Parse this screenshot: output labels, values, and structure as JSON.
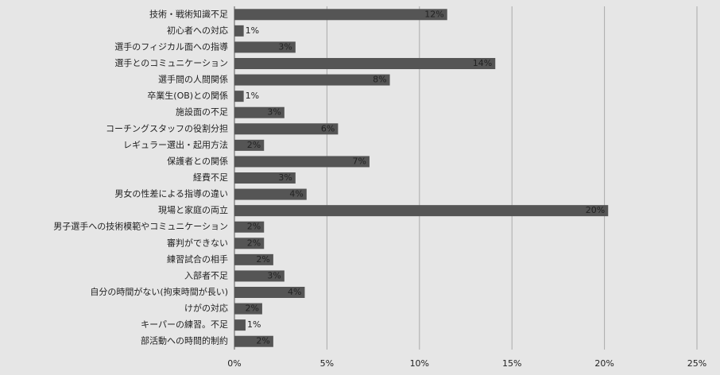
{
  "chart_data": {
    "type": "hbar",
    "categories": [
      "技術・戦術知識不足",
      "初心者への対応",
      "選手のフィジカル面への指導",
      "選手とのコミュニケーション",
      "選手間の人間関係",
      "卒業生(OB)との関係",
      "施設面の不足",
      "コーチングスタッフの役割分担",
      "レギュラー選出・起用方法",
      "保護者との関係",
      "経費不足",
      "男女の性差による指導の違い",
      "現場と家庭の両立",
      "男子選手への技術模範やコミュニケーション",
      "審判ができない",
      "練習試合の相手",
      "入部者不足",
      "自分の時間がない(拘束時間が長い)",
      "けがの対応",
      "キーパーの練習。不足",
      "部活動への時間的制約"
    ],
    "values": [
      11.5,
      0.5,
      3.3,
      14.1,
      8.4,
      0.5,
      2.7,
      5.6,
      1.6,
      7.3,
      3.3,
      3.9,
      20.2,
      1.6,
      1.6,
      2.1,
      2.7,
      3.8,
      1.5,
      0.6,
      2.1
    ],
    "value_labels": [
      "12%",
      "1%",
      "3%",
      "14%",
      "8%",
      "1%",
      "3%",
      "6%",
      "2%",
      "7%",
      "3%",
      "4%",
      "20%",
      "2%",
      "2%",
      "2%",
      "3%",
      "4%",
      "2%",
      "1%",
      "2%"
    ],
    "color": "#555555",
    "xlim": [
      0,
      25
    ],
    "xticks": [
      {
        "value": 0,
        "label": "0%"
      },
      {
        "value": 5,
        "label": "5%"
      },
      {
        "value": 10,
        "label": "10%"
      },
      {
        "value": 15,
        "label": "15%"
      },
      {
        "value": 20,
        "label": "20%"
      },
      {
        "value": 25,
        "label": "25%"
      }
    ],
    "grid": true
  }
}
